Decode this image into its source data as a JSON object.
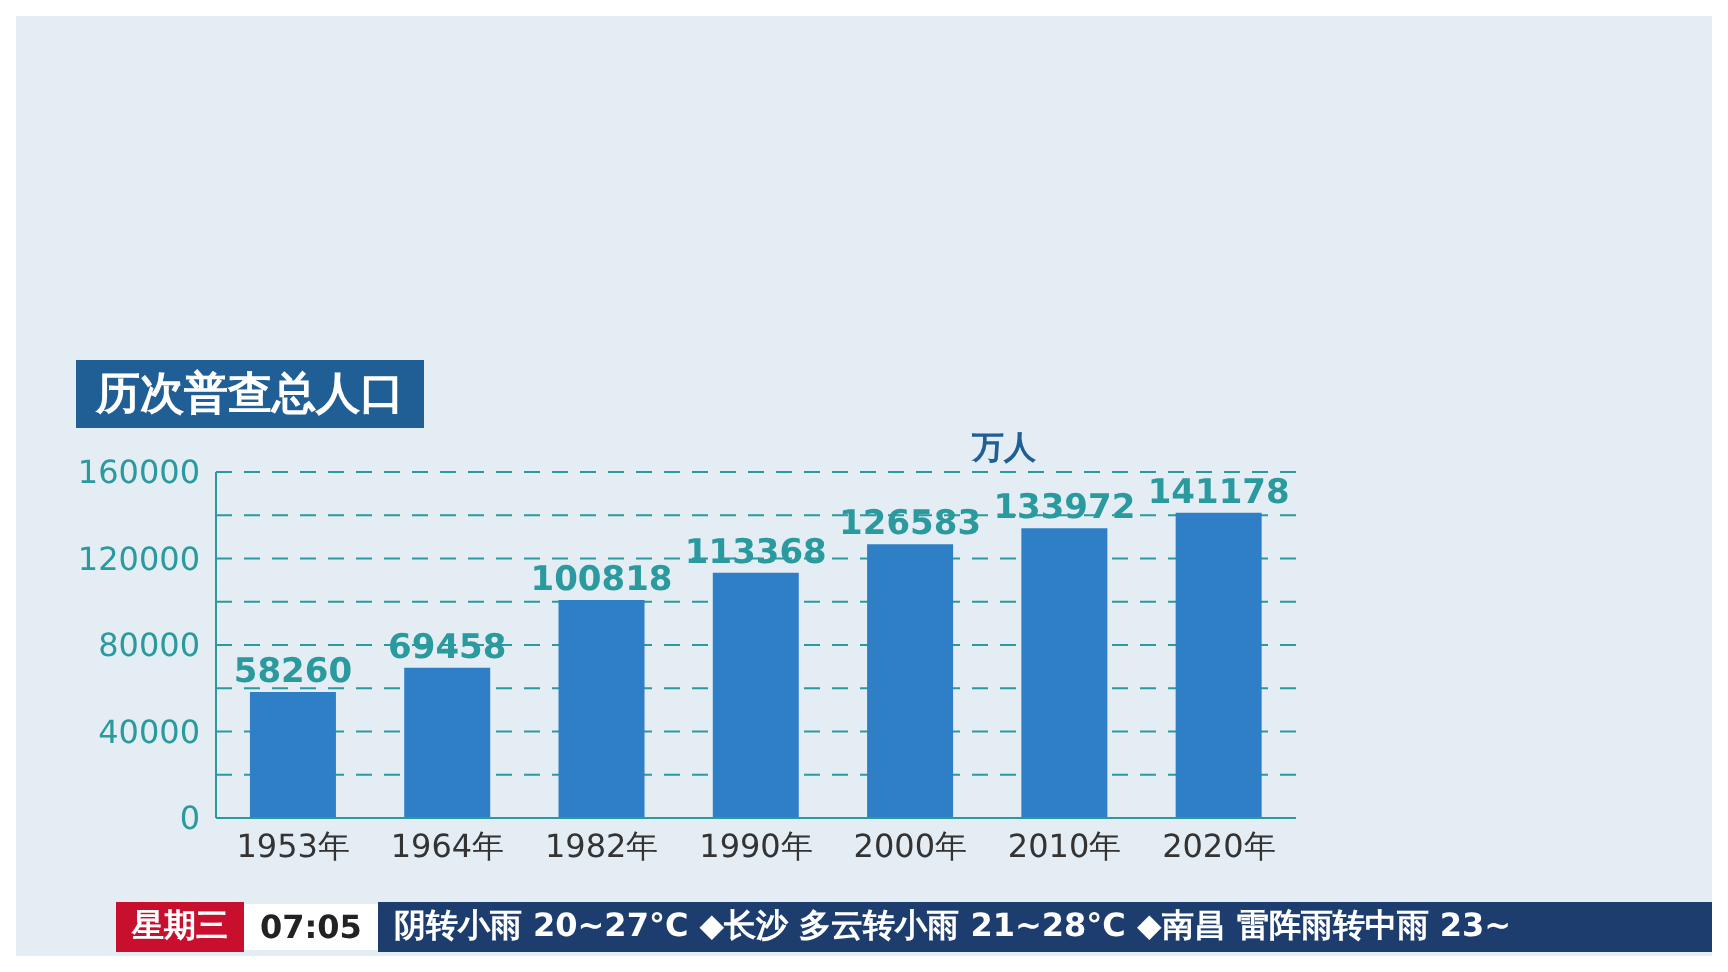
{
  "chart_data": {
    "type": "bar",
    "title": "历次普查总人口",
    "ylabel": "万人",
    "categories": [
      "1953年",
      "1964年",
      "1982年",
      "1990年",
      "2000年",
      "2010年",
      "2020年"
    ],
    "values": [
      58260,
      69458,
      100818,
      113368,
      126583,
      133972,
      141178
    ],
    "color": "#2e7fc6",
    "ylim": [
      0,
      160000
    ],
    "yticks": [
      0,
      {
        "value": 20000,
        "label": null
      },
      40000,
      {
        "value": 60000,
        "label": null
      },
      80000,
      {
        "value": 100000,
        "label": null
      },
      120000,
      {
        "value": 140000,
        "label": null
      },
      160000
    ],
    "grid": "y",
    "data_labels": true,
    "annotations": [
      "星期三",
      "07:05",
      "阴转小雨 20~27°C ◆长沙 多云转小雨 21~28°C ◆南昌 雷阵雨转中雨 23~"
    ]
  }
}
